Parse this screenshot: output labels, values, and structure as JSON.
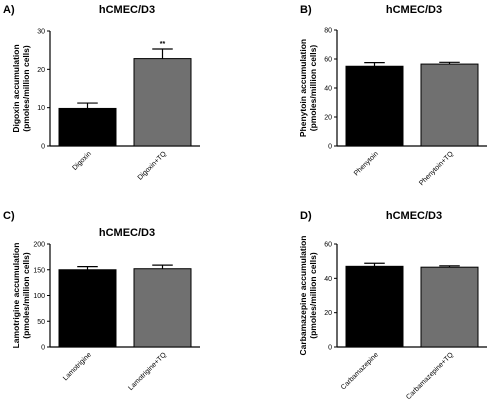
{
  "chart_data": [
    {
      "panel": "A)",
      "type": "bar",
      "title": "hCMEC/D3",
      "ylabel": [
        "Digoxin accumulation",
        "(pmoles/million cells)"
      ],
      "categories": [
        "Digoxin",
        "Digoxin+TQ"
      ],
      "values": [
        9.8,
        22.8
      ],
      "errors": [
        1.4,
        2.5
      ],
      "bar_colors": [
        "#000000",
        "#707070"
      ],
      "significance": [
        "",
        "**"
      ],
      "ylim": [
        0,
        30
      ],
      "yticks": [
        0,
        10,
        20,
        30
      ]
    },
    {
      "panel": "B)",
      "type": "bar",
      "title": "hCMEC/D3",
      "ylabel": [
        "Phenytoin accumulation",
        "(pmoles/million cells)"
      ],
      "categories": [
        "Phenytoin",
        "Phenytoin+TQ"
      ],
      "values": [
        55,
        56.5
      ],
      "errors": [
        2.5,
        1.2
      ],
      "bar_colors": [
        "#000000",
        "#707070"
      ],
      "significance": [
        "",
        ""
      ],
      "ylim": [
        0,
        80
      ],
      "yticks": [
        0,
        20,
        40,
        60,
        80
      ]
    },
    {
      "panel": "C)",
      "type": "bar",
      "title": "hCMEC/D3",
      "ylabel": [
        "Lamotrigine accumulation",
        "(pmoles/million cells)"
      ],
      "categories": [
        "Lamotrigine",
        "Lamotrigine+TQ"
      ],
      "values": [
        150,
        152
      ],
      "errors": [
        6,
        7
      ],
      "bar_colors": [
        "#000000",
        "#707070"
      ],
      "significance": [
        "",
        ""
      ],
      "ylim": [
        0,
        200
      ],
      "yticks": [
        0,
        50,
        100,
        150,
        200
      ]
    },
    {
      "panel": "D)",
      "type": "bar",
      "title": "hCMEC/D3",
      "ylabel": [
        "Carbamazepine accumulation",
        "(pmoles/million cells)"
      ],
      "categories": [
        "Carbamazepine",
        "Carbamazepine+TQ"
      ],
      "values": [
        47,
        46.5
      ],
      "errors": [
        1.8,
        0.8
      ],
      "bar_colors": [
        "#000000",
        "#707070"
      ],
      "significance": [
        "",
        ""
      ],
      "ylim": [
        0,
        60
      ],
      "yticks": [
        0,
        20,
        40,
        60
      ]
    }
  ]
}
